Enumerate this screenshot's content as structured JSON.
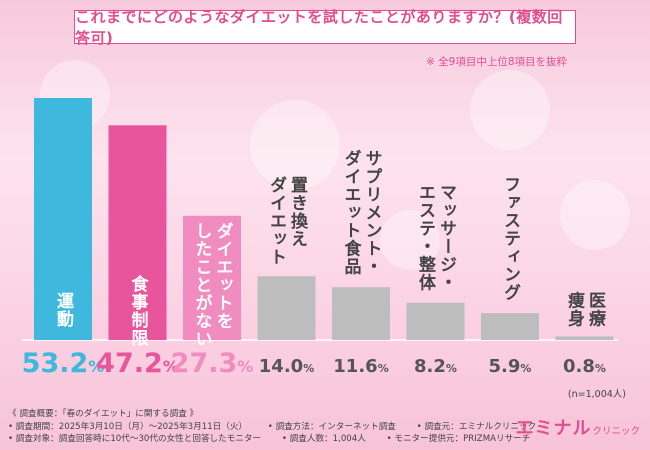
{
  "header": {
    "title": "これまでにどのようなダイエットを試したことがありますか？(複数回答可)",
    "note": "※ 全9項目中上位8項目を抜粋"
  },
  "chart_data": {
    "type": "bar",
    "categories": [
      "運動",
      "食事制限",
      "ダイエットをしたことがない",
      "置き換えダイエット",
      "サプリメント・ダイエット食品",
      "マッサージ・エステ・整体",
      "ファスティング",
      "医療痩身"
    ],
    "category_lines": [
      [
        "運動"
      ],
      [
        "食事制限"
      ],
      [
        "ダイエットを",
        "したことがない"
      ],
      [
        "置き換え",
        "ダイエット"
      ],
      [
        "サプリメント・",
        "ダイエット食品"
      ],
      [
        "マッサージ・",
        "エステ・整体"
      ],
      [
        "ファスティング"
      ],
      [
        "医療",
        "痩身"
      ]
    ],
    "values": [
      53.2,
      47.2,
      27.3,
      14.0,
      11.6,
      8.2,
      5.9,
      0.8
    ],
    "value_labels": [
      "53.2",
      "47.2",
      "27.3",
      "14.0",
      "11.6",
      "8.2",
      "5.9",
      "0.8"
    ],
    "unit": "%",
    "bar_colors": [
      "#3eb8dc",
      "#e9559c",
      "#f08cc0",
      "#bdbdbd",
      "#bdbdbd",
      "#bdbdbd",
      "#bdbdbd",
      "#bdbdbd"
    ],
    "value_colors": [
      "#3eb8dc",
      "#e9559c",
      "#f08cc0",
      "#555555",
      "#555555",
      "#555555",
      "#555555",
      "#555555"
    ],
    "ylim": [
      0,
      55
    ],
    "sample_size": "(n=1,004人)",
    "grid": false
  },
  "survey": {
    "overview": "《 調査概要：「春のダイエット」に関する調査 》",
    "row1": [
      "• 調査期間：2025年3月10日（月）～2025年3月11日（火）",
      "• 調査方法：インターネット調査",
      "• 調査元：エミナルクリニック"
    ],
    "row2": [
      "• 調査対象：調査回答時に10代～30代の女性と回答したモニター",
      "• 調査人数：1,004人",
      "• モニター提供元：PRIZMAリサーチ"
    ]
  },
  "logo": {
    "main": "エミナル",
    "sub": "クリニック"
  }
}
